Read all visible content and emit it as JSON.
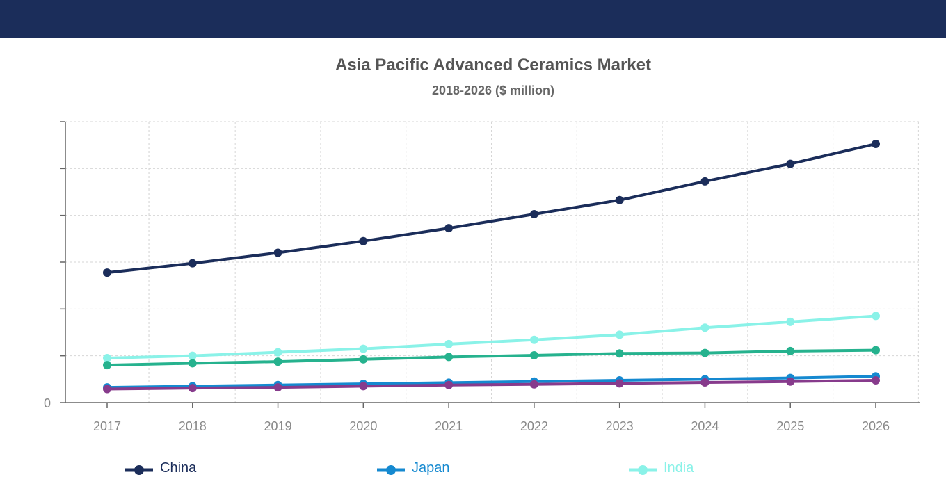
{
  "header": {
    "background": "#1b2d5a"
  },
  "chart_data": {
    "type": "line",
    "title": "Asia Pacific Advanced Ceramics Market",
    "subtitle": "2018-2026 ($ million)",
    "xlabel": "",
    "ylabel": "",
    "x": [
      "2017",
      "2018",
      "2019",
      "2020",
      "2021",
      "2022",
      "2023",
      "2024",
      "2025",
      "2026"
    ],
    "ylim": [
      0,
      12
    ],
    "y_tick_labels": [
      "0",
      "",
      "",
      "",
      "",
      "",
      ""
    ],
    "grid": true,
    "legend_position": "bottom",
    "series": [
      {
        "name": "China",
        "color": "#1b2d5a",
        "values": [
          5.55,
          5.95,
          6.4,
          6.9,
          7.45,
          8.05,
          8.65,
          9.45,
          10.2,
          11.05
        ]
      },
      {
        "name": "",
        "color": "#26b28e",
        "values": [
          1.6,
          1.68,
          1.75,
          1.85,
          1.95,
          2.02,
          2.1,
          2.12,
          2.2,
          2.24
        ]
      },
      {
        "name": "India",
        "color": "#8af2e8",
        "values": [
          1.9,
          2.0,
          2.15,
          2.3,
          2.5,
          2.68,
          2.9,
          3.2,
          3.45,
          3.7
        ]
      },
      {
        "name": "Japan",
        "color": "#1589d0",
        "values": [
          0.65,
          0.7,
          0.75,
          0.8,
          0.85,
          0.9,
          0.95,
          1.0,
          1.05,
          1.12
        ]
      },
      {
        "name": "",
        "color": "#873b8c",
        "values": [
          0.58,
          0.62,
          0.65,
          0.7,
          0.75,
          0.78,
          0.82,
          0.86,
          0.9,
          0.95
        ]
      }
    ]
  },
  "legend": [
    {
      "name": "China",
      "color": "#1b2d5a",
      "label_color": "#1b2d5a"
    },
    {
      "name": "Japan",
      "color": "#1589d0",
      "label_color": "#1589d0"
    },
    {
      "name": "India",
      "color": "#8af2e8",
      "label_color": "#8af2e8"
    }
  ]
}
